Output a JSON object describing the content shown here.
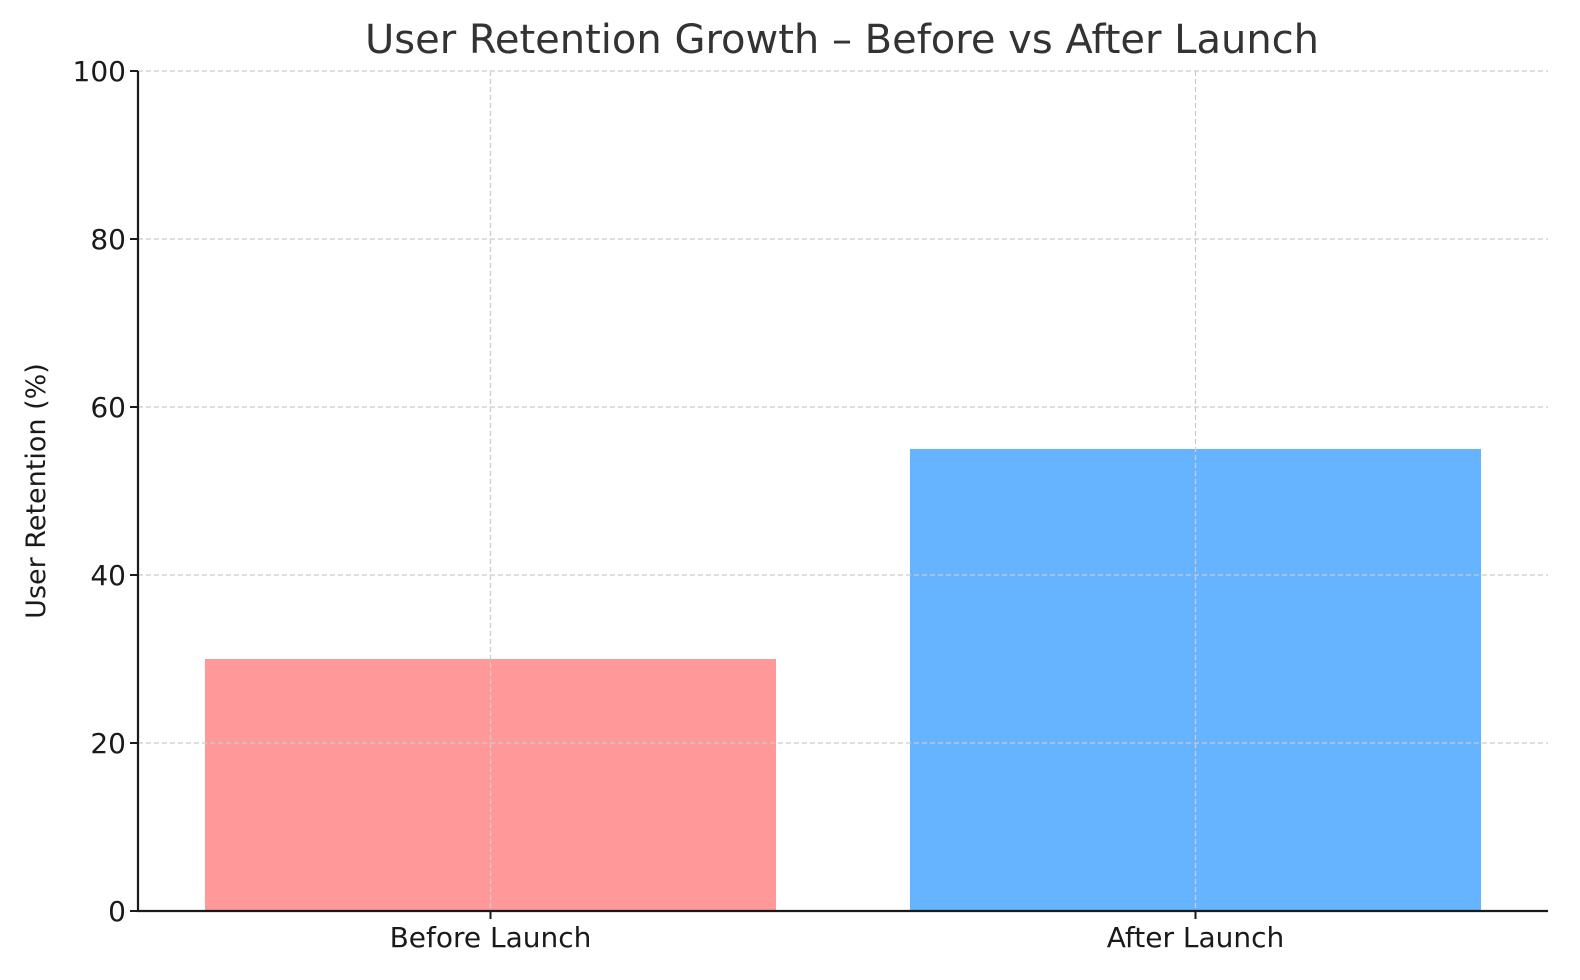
{
  "chart_data": {
    "type": "bar",
    "title": "User Retention Growth – Before vs After Launch",
    "xlabel": "",
    "ylabel": "User Retention (%)",
    "categories": [
      "Before Launch",
      "After Launch"
    ],
    "values": [
      30,
      55
    ],
    "colors": [
      "#ff9999",
      "#66b3ff"
    ],
    "ylim": [
      0,
      100
    ],
    "yticks": [
      0,
      20,
      40,
      60,
      80,
      100
    ],
    "grid": true
  }
}
